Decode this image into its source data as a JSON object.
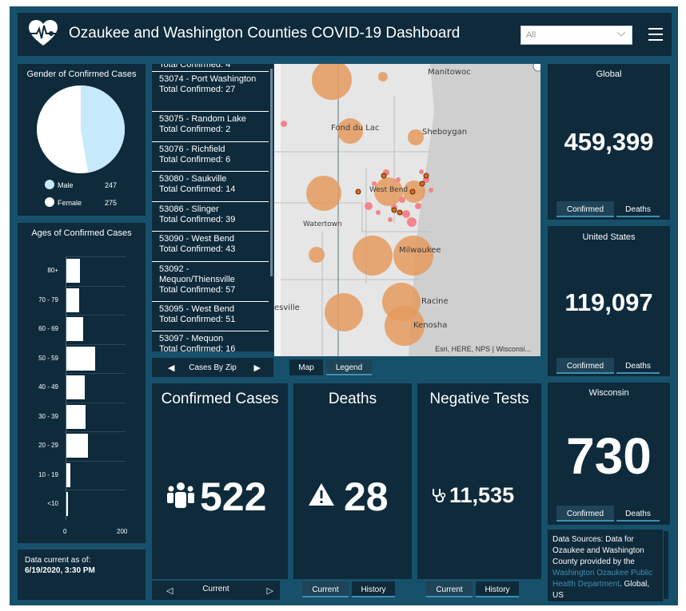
{
  "header": {
    "title": "Ozaukee and Washington Counties COVID-19 Dashboard",
    "filter_value": "All"
  },
  "gender": {
    "title": "Gender of Confirmed Cases",
    "items": [
      {
        "label": "Male",
        "value": "247",
        "color": "#c6e9fb"
      },
      {
        "label": "Female",
        "value": "275",
        "color": "#ffffff"
      }
    ]
  },
  "ages": {
    "title": "Ages of Confirmed Cases",
    "axis": {
      "min_label": "0",
      "max_label": "200"
    }
  },
  "chart_data": {
    "type": "bar",
    "orientation": "horizontal",
    "categories": [
      "80+",
      "70 - 79",
      "60 - 69",
      "50 - 59",
      "40 - 49",
      "30 - 39",
      "20 - 29",
      "10 - 19",
      "<10"
    ],
    "values": [
      50,
      47,
      61,
      103,
      68,
      70,
      78,
      16,
      7
    ],
    "xlim": [
      0,
      200
    ],
    "title": "Ages of Confirmed Cases"
  },
  "data_current": {
    "label": "Data current as of:",
    "value": "6/19/2020, 3:30 PM"
  },
  "zips": {
    "partial_top": "Total Confirmed: 4",
    "items": [
      {
        "name": "53074 - Port Washington",
        "total": "Total Confirmed: 27"
      },
      {
        "name": "53075 - Random Lake",
        "total": "Total Confirmed: 2"
      },
      {
        "name": "53076 - Richfield",
        "total": "Total Confirmed: 6"
      },
      {
        "name": "53080 - Saukville",
        "total": "Total Confirmed: 14"
      },
      {
        "name": "53086 - Slinger",
        "total": "Total Confirmed: 39"
      },
      {
        "name": "53090 - West Bend",
        "total": "Total Confirmed: 43"
      },
      {
        "name": "53092 - Mequon/Thiensville",
        "total": "Total Confirmed: 57"
      },
      {
        "name": "53095 - West Bend",
        "total": "Total Confirmed: 51"
      },
      {
        "name": "53097 - Mequon",
        "total": "Total Confirmed: 16"
      }
    ],
    "pager_label": "Cases By Zip"
  },
  "map": {
    "labels": [
      "Manitowoc",
      "Fond du Lac",
      "Sheboygan",
      "West Bend",
      "Watertown",
      "Milwaukee",
      "Racine",
      "Kenosha",
      "esville"
    ],
    "attribution": "Esri, HERE, NPS | Wisconsi...",
    "tab_map": "Map",
    "tab_legend": "Legend"
  },
  "global": {
    "title": "Global",
    "value": "459,399",
    "tab1": "Confirmed",
    "tab2": "Deaths"
  },
  "us": {
    "title": "United States",
    "value": "119,097",
    "tab1": "Confirmed",
    "tab2": "Deaths"
  },
  "wisconsin": {
    "title": "Wisconsin",
    "value": "730",
    "tab1": "Confirmed",
    "tab2": "Deaths"
  },
  "confirmed": {
    "title": "Confirmed Cases",
    "value": "522",
    "pager_label": "Current",
    "icon": "people-icon"
  },
  "deaths": {
    "title": "Deaths",
    "value": "28",
    "tab1": "Current",
    "tab2": "History",
    "icon": "warning-icon"
  },
  "negative": {
    "title": "Negative Tests",
    "value": "11,535",
    "tab1": "Current",
    "tab2": "History",
    "icon": "stethoscope-icon"
  },
  "sources": {
    "text1": "Data Sources:  Data for Ozaukee and Washington County provided by the ",
    "link": "Washington Ozaukee Public Health Department",
    "text2": ". Global, US"
  },
  "colors": {
    "panel": "#0e2a3b",
    "frame": "#17506b",
    "accent": "#3f8fb4",
    "map_circle": "#e49a5e",
    "map_point": "#f47a80"
  }
}
